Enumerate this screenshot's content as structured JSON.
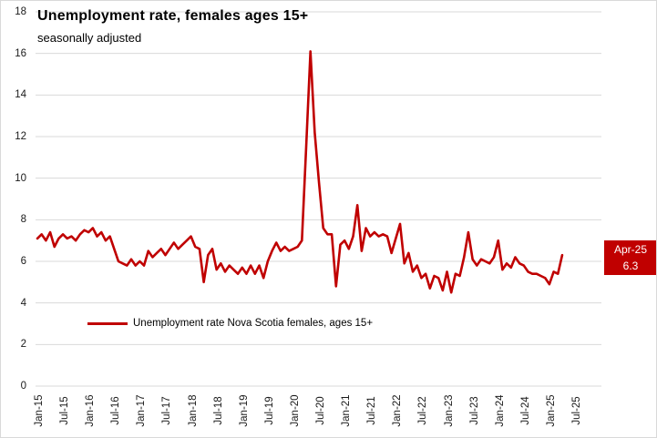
{
  "chart_data": {
    "type": "line",
    "title": "Unemployment rate, females ages 15+",
    "subtitle": "seasonally adjusted",
    "legend_position": "bottom-left-inside",
    "grid": "horizontal-only",
    "colors": {
      "line": "#C00000",
      "gridline": "#D9D9D9",
      "callout_background": "#C00000",
      "callout_text": "#FFFFFF",
      "text": "#000000"
    },
    "xlabel": "",
    "ylabel": "",
    "yaxis": {
      "range": [
        0,
        18
      ],
      "ticks": [
        0,
        2,
        4,
        6,
        8,
        10,
        12,
        14,
        16,
        18
      ]
    },
    "xaxis": {
      "tick_labels": [
        "Jan-15",
        "Jul-15",
        "Jan-16",
        "Jul-16",
        "Jan-17",
        "Jul-17",
        "Jan-18",
        "Jul-18",
        "Jan-19",
        "Jul-19",
        "Jan-20",
        "Jul-20",
        "Jan-21",
        "Jul-21",
        "Jan-22",
        "Jul-22",
        "Jan-23",
        "Jul-23",
        "Jan-24",
        "Jul-24",
        "Jan-25",
        "Jul-25"
      ],
      "tick_spacing_months": 6
    },
    "x": [
      "Jan-15",
      "Feb-15",
      "Mar-15",
      "Apr-15",
      "May-15",
      "Jun-15",
      "Jul-15",
      "Aug-15",
      "Sep-15",
      "Oct-15",
      "Nov-15",
      "Dec-15",
      "Jan-16",
      "Feb-16",
      "Mar-16",
      "Apr-16",
      "May-16",
      "Jun-16",
      "Jul-16",
      "Aug-16",
      "Sep-16",
      "Oct-16",
      "Nov-16",
      "Dec-16",
      "Jan-17",
      "Feb-17",
      "Mar-17",
      "Apr-17",
      "May-17",
      "Jun-17",
      "Jul-17",
      "Aug-17",
      "Sep-17",
      "Oct-17",
      "Nov-17",
      "Dec-17",
      "Jan-18",
      "Feb-18",
      "Mar-18",
      "Apr-18",
      "May-18",
      "Jun-18",
      "Jul-18",
      "Aug-18",
      "Sep-18",
      "Oct-18",
      "Nov-18",
      "Dec-18",
      "Jan-19",
      "Feb-19",
      "Mar-19",
      "Apr-19",
      "May-19",
      "Jun-19",
      "Jul-19",
      "Aug-19",
      "Sep-19",
      "Oct-19",
      "Nov-19",
      "Dec-19",
      "Jan-20",
      "Feb-20",
      "Mar-20",
      "Apr-20",
      "May-20",
      "Jun-20",
      "Jul-20",
      "Aug-20",
      "Sep-20",
      "Oct-20",
      "Nov-20",
      "Dec-20",
      "Jan-21",
      "Feb-21",
      "Mar-21",
      "Apr-21",
      "May-21",
      "Jun-21",
      "Jul-21",
      "Aug-21",
      "Sep-21",
      "Oct-21",
      "Nov-21",
      "Dec-21",
      "Jan-22",
      "Feb-22",
      "Mar-22",
      "Apr-22",
      "May-22",
      "Jun-22",
      "Jul-22",
      "Aug-22",
      "Sep-22",
      "Oct-22",
      "Nov-22",
      "Dec-22",
      "Jan-23",
      "Feb-23",
      "Mar-23",
      "Apr-23",
      "May-23",
      "Jun-23",
      "Jul-23",
      "Aug-23",
      "Sep-23",
      "Oct-23",
      "Nov-23",
      "Dec-23",
      "Jan-24",
      "Feb-24",
      "Mar-24",
      "Apr-24",
      "May-24",
      "Jun-24",
      "Jul-24",
      "Aug-24",
      "Sep-24",
      "Oct-24",
      "Nov-24",
      "Dec-24",
      "Jan-25",
      "Feb-25",
      "Mar-25",
      "Apr-25"
    ],
    "series": [
      {
        "name": "Unemployment rate Nova Scotia females, ages 15+",
        "values": [
          7.1,
          7.3,
          7.0,
          7.4,
          6.7,
          7.1,
          7.3,
          7.1,
          7.2,
          7.0,
          7.3,
          7.5,
          7.4,
          7.6,
          7.2,
          7.4,
          7.0,
          7.2,
          6.6,
          6.0,
          5.9,
          5.8,
          6.1,
          5.8,
          6.0,
          5.8,
          6.5,
          6.2,
          6.4,
          6.6,
          6.3,
          6.6,
          6.9,
          6.6,
          6.8,
          7.0,
          7.2,
          6.7,
          6.6,
          5.0,
          6.3,
          6.6,
          5.6,
          5.9,
          5.5,
          5.8,
          5.6,
          5.4,
          5.7,
          5.4,
          5.8,
          5.4,
          5.8,
          5.2,
          6.0,
          6.5,
          6.9,
          6.5,
          6.7,
          6.5,
          6.6,
          6.7,
          7.0,
          11.5,
          16.1,
          12.2,
          9.8,
          7.6,
          7.3,
          7.3,
          4.8,
          6.8,
          7.0,
          6.6,
          7.2,
          8.7,
          6.5,
          7.6,
          7.2,
          7.4,
          7.2,
          7.3,
          7.2,
          6.4,
          7.1,
          7.8,
          5.9,
          6.4,
          5.5,
          5.8,
          5.2,
          5.4,
          4.7,
          5.3,
          5.2,
          4.6,
          5.5,
          4.5,
          5.4,
          5.3,
          6.2,
          7.4,
          6.1,
          5.8,
          6.1,
          6.0,
          5.9,
          6.2,
          7.0,
          5.6,
          5.9,
          5.7,
          6.2,
          5.9,
          5.8,
          5.5,
          5.4,
          5.4,
          5.3,
          5.2,
          4.9,
          5.5,
          5.4,
          6.3
        ]
      }
    ],
    "annotation": {
      "label": "Apr-25",
      "value": "6.3"
    }
  }
}
